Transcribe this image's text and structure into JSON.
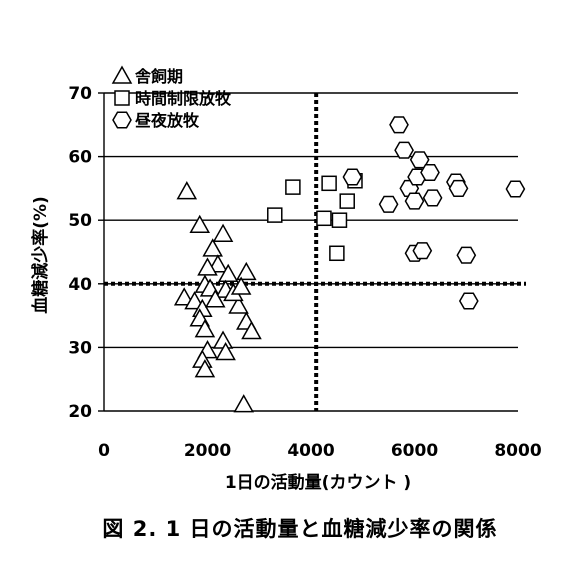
{
  "chart_data": {
    "type": "scatter",
    "xlabel": "1日の活動量(カウント )",
    "ylabel": "血糖減少率(%)",
    "caption": "図 2. 1 日の活動量と血糖減少率の関係",
    "xlim": [
      0,
      8000
    ],
    "ylim": [
      20,
      70
    ],
    "xticks": [
      0,
      2000,
      4000,
      6000,
      8000
    ],
    "yticks": [
      20,
      30,
      40,
      50,
      60,
      70
    ],
    "grid": "horizontal",
    "legend_position": "top-left",
    "reference_lines": {
      "vertical_x": 4100,
      "horizontal_y": 40
    },
    "series": [
      {
        "name": "舎飼期",
        "marker": "triangle",
        "points": [
          [
            1600,
            54.5
          ],
          [
            1850,
            49.2
          ],
          [
            2100,
            45.5
          ],
          [
            2300,
            47.8
          ],
          [
            2200,
            43.0
          ],
          [
            2000,
            42.5
          ],
          [
            2400,
            41.5
          ],
          [
            2750,
            41.8
          ],
          [
            1950,
            39.8
          ],
          [
            2050,
            39.2
          ],
          [
            2350,
            39.0
          ],
          [
            1550,
            37.8
          ],
          [
            1750,
            37.2
          ],
          [
            1900,
            36.0
          ],
          [
            2600,
            36.5
          ],
          [
            1850,
            34.5
          ],
          [
            2150,
            37.5
          ],
          [
            2750,
            34.0
          ],
          [
            2850,
            32.5
          ],
          [
            1950,
            32.8
          ],
          [
            2300,
            31.0
          ],
          [
            2000,
            29.5
          ],
          [
            2350,
            29.2
          ],
          [
            1900,
            28.0
          ],
          [
            1950,
            26.5
          ],
          [
            2700,
            21.0
          ],
          [
            2500,
            38.5
          ],
          [
            2650,
            39.5
          ]
        ]
      },
      {
        "name": "時間制限放牧",
        "marker": "square",
        "points": [
          [
            3300,
            50.8
          ],
          [
            3650,
            55.2
          ],
          [
            4250,
            50.3
          ],
          [
            4350,
            55.8
          ],
          [
            4500,
            44.8
          ],
          [
            4550,
            50.0
          ],
          [
            4700,
            53.0
          ],
          [
            4850,
            56.2
          ]
        ]
      },
      {
        "name": "昼夜放牧",
        "marker": "hexagon",
        "points": [
          [
            4800,
            56.8
          ],
          [
            5500,
            52.5
          ],
          [
            5700,
            65.0
          ],
          [
            5800,
            61.0
          ],
          [
            5900,
            55.0
          ],
          [
            6000,
            53.0
          ],
          [
            6050,
            56.8
          ],
          [
            6100,
            59.5
          ],
          [
            6300,
            57.5
          ],
          [
            6350,
            53.5
          ],
          [
            6000,
            44.8
          ],
          [
            6150,
            45.2
          ],
          [
            6800,
            56.0
          ],
          [
            6850,
            55.0
          ],
          [
            7000,
            44.5
          ],
          [
            7050,
            37.3
          ],
          [
            7950,
            54.9
          ]
        ]
      }
    ]
  }
}
